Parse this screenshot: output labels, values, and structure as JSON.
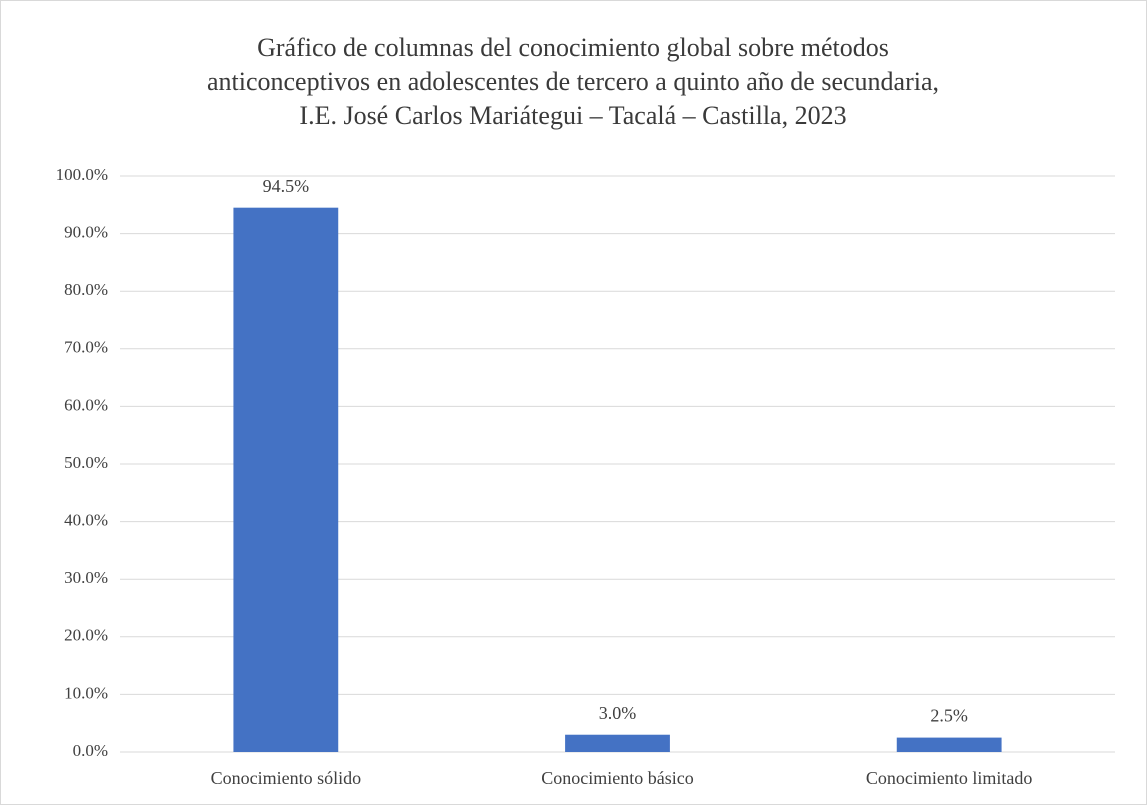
{
  "chart_data": {
    "type": "bar",
    "title": [
      "Gráfico de columnas del conocimiento global sobre métodos",
      "anticonceptivos en adolescentes de tercero a quinto año de secundaria,",
      "I.E. José Carlos Mariátegui – Tacalá – Castilla, 2023"
    ],
    "categories": [
      "Conocimiento sólido",
      "Conocimiento básico",
      "Conocimiento limitado"
    ],
    "values": [
      94.5,
      3.0,
      2.5
    ],
    "value_labels": [
      "94.5%",
      "3.0%",
      "2.5%"
    ],
    "color": "#4472c4",
    "ylim": [
      0,
      100
    ],
    "yticks": [
      {
        "value": 0,
        "label": "0.0%"
      },
      {
        "value": 10,
        "label": "10.0%"
      },
      {
        "value": 20,
        "label": "20.0%"
      },
      {
        "value": 30,
        "label": "30.0%"
      },
      {
        "value": 40,
        "label": "40.0%"
      },
      {
        "value": 50,
        "label": "50.0%"
      },
      {
        "value": 60,
        "label": "60.0%"
      },
      {
        "value": 70,
        "label": "70.0%"
      },
      {
        "value": 80,
        "label": "80.0%"
      },
      {
        "value": 90,
        "label": "90.0%"
      },
      {
        "value": 100,
        "label": "100.0%"
      }
    ],
    "grid": true
  }
}
